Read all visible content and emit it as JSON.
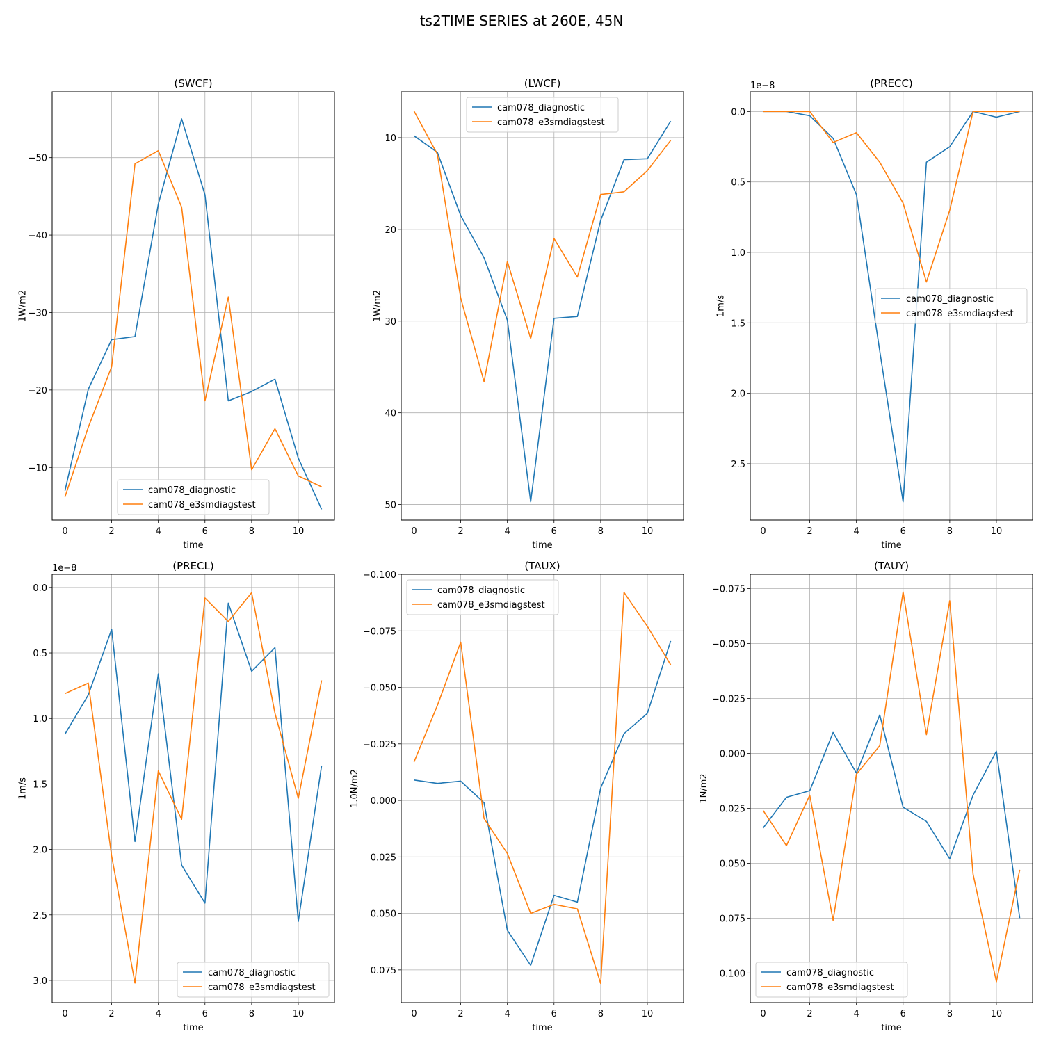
{
  "suptitle": "ts2TIME SERIES at 260E, 45N",
  "colors": {
    "cam078_diagnostic": "#1f77b4",
    "cam078_e3smdiagstest": "#ff7f0e"
  },
  "chart_data": [
    {
      "type": "line",
      "title": "(SWCF)",
      "xlabel": "time",
      "ylabel": "1W/m2",
      "offset_text": "",
      "y_inverted": true,
      "xlim": [
        -0.55,
        11.55
      ],
      "ylim": [
        -3.2,
        -58.5
      ],
      "xticks": [
        0,
        2,
        4,
        6,
        8,
        10
      ],
      "xtick_labels": [
        "0",
        "2",
        "4",
        "6",
        "8",
        "10"
      ],
      "yticks": [
        -10,
        -20,
        -30,
        -40,
        -50
      ],
      "ytick_labels": [
        "−10",
        "−20",
        "−30",
        "−40",
        "−50"
      ],
      "legend": {
        "location": "lower-center",
        "entries": [
          "cam078_diagnostic",
          "cam078_e3smdiagstest"
        ]
      },
      "x": [
        0,
        1,
        2,
        3,
        4,
        5,
        6,
        7,
        8,
        9,
        10,
        11
      ],
      "series": [
        {
          "name": "cam078_diagnostic",
          "values": [
            -7.0,
            -20.1,
            -26.5,
            -26.9,
            -44.0,
            -55.0,
            -45.2,
            -18.6,
            -19.8,
            -21.4,
            -11.2,
            -4.6
          ]
        },
        {
          "name": "cam078_e3smdiagstest",
          "values": [
            -6.2,
            -15.2,
            -23.0,
            -49.2,
            -50.9,
            -43.6,
            -18.6,
            -32.0,
            -9.7,
            -15.0,
            -8.9,
            -7.5
          ]
        }
      ]
    },
    {
      "type": "line",
      "title": "(LWCF)",
      "xlabel": "time",
      "ylabel": "1W/m2",
      "offset_text": "",
      "y_inverted": true,
      "xlim": [
        -0.55,
        11.55
      ],
      "ylim": [
        51.7,
        5.0
      ],
      "xticks": [
        0,
        2,
        4,
        6,
        8,
        10
      ],
      "xtick_labels": [
        "0",
        "2",
        "4",
        "6",
        "8",
        "10"
      ],
      "yticks": [
        10,
        20,
        30,
        40,
        50
      ],
      "ytick_labels": [
        "10",
        "20",
        "30",
        "40",
        "50"
      ],
      "legend": {
        "location": "upper-center",
        "entries": [
          "cam078_diagnostic",
          "cam078_e3smdiagstest"
        ]
      },
      "x": [
        0,
        1,
        2,
        3,
        4,
        5,
        6,
        7,
        8,
        9,
        10,
        11
      ],
      "series": [
        {
          "name": "cam078_diagnostic",
          "values": [
            9.8,
            11.6,
            18.5,
            23.1,
            29.9,
            49.7,
            29.7,
            29.5,
            19.0,
            12.4,
            12.3,
            8.2
          ]
        },
        {
          "name": "cam078_e3smdiagstest",
          "values": [
            7.1,
            11.8,
            27.5,
            36.6,
            23.5,
            31.9,
            21.0,
            25.2,
            16.2,
            15.9,
            13.6,
            10.3
          ]
        }
      ]
    },
    {
      "type": "line",
      "title": "(PRECC)",
      "xlabel": "time",
      "ylabel": "1m/s",
      "offset_text": "1e−8",
      "y_inverted": true,
      "xlim": [
        -0.55,
        11.55
      ],
      "ylim": [
        2.9,
        -0.14
      ],
      "xticks": [
        0,
        2,
        4,
        6,
        8,
        10
      ],
      "xtick_labels": [
        "0",
        "2",
        "4",
        "6",
        "8",
        "10"
      ],
      "yticks": [
        0.0,
        0.5,
        1.0,
        1.5,
        2.0,
        2.5
      ],
      "ytick_labels": [
        "0.0",
        "0.5",
        "1.0",
        "1.5",
        "2.0",
        "2.5"
      ],
      "legend": {
        "location": "center-right",
        "entries": [
          "cam078_diagnostic",
          "cam078_e3smdiagstest"
        ]
      },
      "x": [
        0,
        1,
        2,
        3,
        4,
        5,
        6,
        7,
        8,
        9,
        10,
        11
      ],
      "series": [
        {
          "name": "cam078_diagnostic",
          "values": [
            0.0,
            0.0,
            0.03,
            0.19,
            0.59,
            1.7,
            2.77,
            0.36,
            0.25,
            0.0,
            0.04,
            0.0
          ]
        },
        {
          "name": "cam078_e3smdiagstest",
          "values": [
            0.0,
            0.0,
            0.0,
            0.22,
            0.15,
            0.36,
            0.65,
            1.21,
            0.7,
            0.0,
            0.0,
            0.0
          ]
        }
      ]
    },
    {
      "type": "line",
      "title": "(PRECL)",
      "xlabel": "time",
      "ylabel": "1m/s",
      "offset_text": "1e−8",
      "y_inverted": true,
      "xlim": [
        -0.55,
        11.55
      ],
      "ylim": [
        3.17,
        -0.1
      ],
      "xticks": [
        0,
        2,
        4,
        6,
        8,
        10
      ],
      "xtick_labels": [
        "0",
        "2",
        "4",
        "6",
        "8",
        "10"
      ],
      "yticks": [
        0.0,
        0.5,
        1.0,
        1.5,
        2.0,
        2.5,
        3.0
      ],
      "ytick_labels": [
        "0.0",
        "0.5",
        "1.0",
        "1.5",
        "2.0",
        "2.5",
        "3.0"
      ],
      "legend": {
        "location": "lower-right",
        "entries": [
          "cam078_diagnostic",
          "cam078_e3smdiagstest"
        ]
      },
      "x": [
        0,
        1,
        2,
        3,
        4,
        5,
        6,
        7,
        8,
        9,
        10,
        11
      ],
      "series": [
        {
          "name": "cam078_diagnostic",
          "values": [
            1.12,
            0.82,
            0.32,
            1.94,
            0.66,
            2.12,
            2.41,
            0.12,
            0.64,
            0.46,
            2.55,
            1.36
          ]
        },
        {
          "name": "cam078_e3smdiagstest",
          "values": [
            0.81,
            0.73,
            2.05,
            3.02,
            1.4,
            1.77,
            0.08,
            0.26,
            0.04,
            0.96,
            1.61,
            0.71
          ]
        }
      ]
    },
    {
      "type": "line",
      "title": "(TAUX)",
      "xlabel": "time",
      "ylabel": "1.0N/m2",
      "offset_text": "",
      "y_inverted": true,
      "xlim": [
        -0.55,
        11.55
      ],
      "ylim": [
        0.0895,
        -0.1
      ],
      "xticks": [
        0,
        2,
        4,
        6,
        8,
        10
      ],
      "xtick_labels": [
        "0",
        "2",
        "4",
        "6",
        "8",
        "10"
      ],
      "yticks": [
        -0.1,
        -0.075,
        -0.05,
        -0.025,
        0.0,
        0.025,
        0.05,
        0.075
      ],
      "ytick_labels": [
        "−0.100",
        "−0.075",
        "−0.050",
        "−0.025",
        "0.000",
        "0.025",
        "0.050",
        "0.075"
      ],
      "legend": {
        "location": "upper-left",
        "entries": [
          "cam078_diagnostic",
          "cam078_e3smdiagstest"
        ]
      },
      "x": [
        0,
        1,
        2,
        3,
        4,
        5,
        6,
        7,
        8,
        9,
        10,
        11
      ],
      "series": [
        {
          "name": "cam078_diagnostic",
          "values": [
            -0.009,
            -0.0075,
            -0.0085,
            0.001,
            0.0575,
            0.073,
            0.042,
            0.045,
            -0.0055,
            -0.0295,
            -0.0385,
            -0.0705
          ]
        },
        {
          "name": "cam078_e3smdiagstest",
          "values": [
            -0.017,
            -0.042,
            -0.07,
            0.008,
            0.0235,
            0.05,
            0.046,
            0.048,
            0.081,
            -0.092,
            -0.077,
            -0.06
          ]
        }
      ]
    },
    {
      "type": "line",
      "title": "(TAUY)",
      "xlabel": "time",
      "ylabel": "1N/m2",
      "offset_text": "",
      "y_inverted": true,
      "xlim": [
        -0.55,
        11.55
      ],
      "ylim": [
        0.1135,
        -0.0815
      ],
      "xticks": [
        0,
        2,
        4,
        6,
        8,
        10
      ],
      "xtick_labels": [
        "0",
        "2",
        "4",
        "6",
        "8",
        "10"
      ],
      "yticks": [
        -0.075,
        -0.05,
        -0.025,
        0.0,
        0.025,
        0.05,
        0.075,
        0.1
      ],
      "ytick_labels": [
        "−0.075",
        "−0.050",
        "−0.025",
        "0.000",
        "0.025",
        "0.050",
        "0.075",
        "0.100"
      ],
      "legend": {
        "location": "lower-left",
        "entries": [
          "cam078_diagnostic",
          "cam078_e3smdiagstest"
        ]
      },
      "x": [
        0,
        1,
        2,
        3,
        4,
        5,
        6,
        7,
        8,
        9,
        10,
        11
      ],
      "series": [
        {
          "name": "cam078_diagnostic",
          "values": [
            0.034,
            0.02,
            0.017,
            -0.0095,
            0.009,
            -0.0175,
            0.0245,
            0.031,
            0.048,
            0.019,
            -0.001,
            0.075
          ]
        },
        {
          "name": "cam078_e3smdiagstest",
          "values": [
            0.026,
            0.042,
            0.019,
            0.076,
            0.0095,
            -0.0035,
            -0.0735,
            -0.0085,
            -0.0695,
            0.055,
            0.104,
            0.053
          ]
        }
      ]
    }
  ]
}
